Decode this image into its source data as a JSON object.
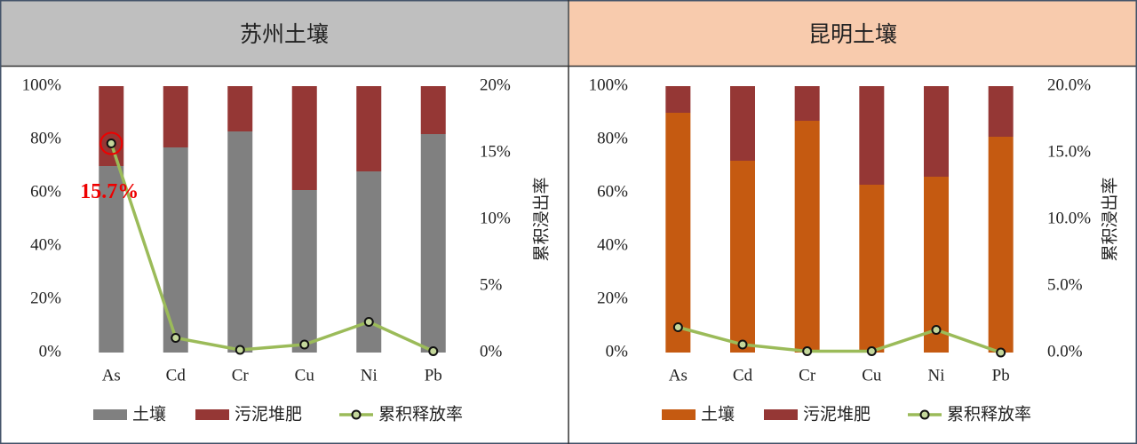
{
  "chart_data": [
    {
      "type": "bar",
      "stacked": true,
      "title": "苏州土壤",
      "header_color": "#bfbfbf",
      "categories": [
        "As",
        "Cd",
        "Cr",
        "Cu",
        "Ni",
        "Pb"
      ],
      "series": [
        {
          "name": "土壤",
          "color": "#808080",
          "values": [
            70,
            77,
            83,
            61,
            68,
            82
          ]
        },
        {
          "name": "污泥堆肥",
          "color": "#953735",
          "values": [
            30,
            23,
            17,
            39,
            32,
            18
          ]
        },
        {
          "name": "累积释放率",
          "type": "line",
          "axis": "y2",
          "color": "#9bbb59",
          "values": [
            15.7,
            1.1,
            0.2,
            0.6,
            2.3,
            0.1
          ],
          "value_labels": [
            "15.7%",
            null,
            null,
            null,
            null,
            null
          ]
        }
      ],
      "ylim": [
        0,
        100
      ],
      "yticks": [
        {
          "value": 0,
          "label": "0%"
        },
        {
          "value": 20,
          "label": "20%"
        },
        {
          "value": 40,
          "label": "40%"
        },
        {
          "value": 60,
          "label": "60%"
        },
        {
          "value": 80,
          "label": "80%"
        },
        {
          "value": 100,
          "label": "100%"
        }
      ],
      "y2lim": [
        0,
        20
      ],
      "y2ticks": [
        {
          "value": 0,
          "label": "0%"
        },
        {
          "value": 5,
          "label": "5%"
        },
        {
          "value": 10,
          "label": "10%"
        },
        {
          "value": 15,
          "label": "15%"
        },
        {
          "value": 20,
          "label": "20%"
        }
      ],
      "y2label": "累积浸出率"
    },
    {
      "type": "bar",
      "stacked": true,
      "title": "昆明土壤",
      "header_color": "#f8cbad",
      "categories": [
        "As",
        "Cd",
        "Cr",
        "Cu",
        "Ni",
        "Pb"
      ],
      "series": [
        {
          "name": "土壤",
          "color": "#c55a11",
          "values": [
            90,
            72,
            87,
            63,
            66,
            81
          ]
        },
        {
          "name": "污泥堆肥",
          "color": "#953735",
          "values": [
            10,
            28,
            13,
            37,
            34,
            19
          ]
        },
        {
          "name": "累积释放率",
          "type": "line",
          "axis": "y2",
          "color": "#9bbb59",
          "values": [
            1.9,
            0.6,
            0.1,
            0.1,
            1.7,
            0.0
          ]
        }
      ],
      "ylim": [
        0,
        100
      ],
      "yticks": [
        {
          "value": 0,
          "label": "0%"
        },
        {
          "value": 20,
          "label": "20%"
        },
        {
          "value": 40,
          "label": "40%"
        },
        {
          "value": 60,
          "label": "60%"
        },
        {
          "value": 80,
          "label": "80%"
        },
        {
          "value": 100,
          "label": "100%"
        }
      ],
      "y2lim": [
        0,
        20
      ],
      "y2ticks": [
        {
          "value": 0,
          "label": "0.0%"
        },
        {
          "value": 5,
          "label": "5.0%"
        },
        {
          "value": 10,
          "label": "10.0%"
        },
        {
          "value": 15,
          "label": "15.0%"
        },
        {
          "value": 20,
          "label": "20.0%"
        }
      ],
      "y2label": "累积浸出率"
    }
  ]
}
